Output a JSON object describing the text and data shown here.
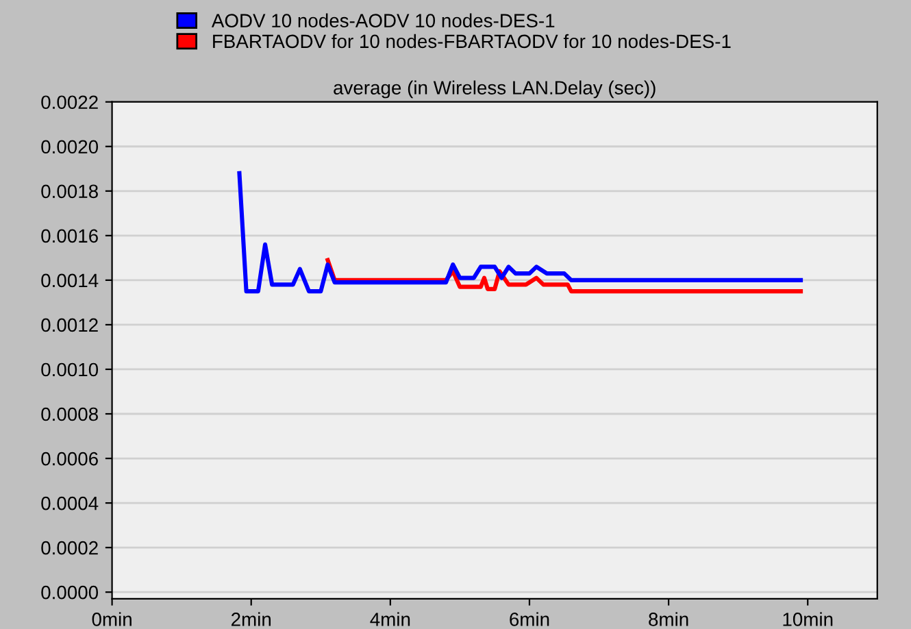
{
  "chart_data": {
    "type": "line",
    "title": "average (in Wireless LAN.Delay (sec))",
    "series": [
      {
        "name": "AODV 10 nodes-AODV 10 nodes-DES-1",
        "color": "#0000ff",
        "x": [
          1.83,
          1.93,
          2.1,
          2.2,
          2.3,
          2.6,
          2.7,
          2.83,
          3.0,
          3.1,
          3.2,
          4.8,
          4.9,
          5.0,
          5.2,
          5.3,
          5.5,
          5.6,
          5.7,
          5.8,
          6.0,
          6.1,
          6.25,
          6.5,
          6.6,
          9.9
        ],
        "values": [
          0.00188,
          0.00135,
          0.00135,
          0.00156,
          0.00138,
          0.00138,
          0.00145,
          0.00135,
          0.00135,
          0.00147,
          0.00139,
          0.00139,
          0.00147,
          0.00141,
          0.00141,
          0.00146,
          0.00146,
          0.00141,
          0.00146,
          0.00143,
          0.00143,
          0.00146,
          0.00143,
          0.00143,
          0.0014,
          0.0014
        ]
      },
      {
        "name": "FBARTAODV for 10 nodes-FBARTAODV for 10 nodes-DES-1",
        "color": "#ff0000",
        "x": [
          3.1,
          3.2,
          4.8,
          4.9,
          5.0,
          5.3,
          5.35,
          5.4,
          5.5,
          5.57,
          5.7,
          5.95,
          6.1,
          6.2,
          6.55,
          6.6,
          9.9
        ],
        "values": [
          0.00149,
          0.0014,
          0.0014,
          0.00144,
          0.00137,
          0.00137,
          0.00141,
          0.00136,
          0.00136,
          0.00144,
          0.00138,
          0.00138,
          0.00141,
          0.00138,
          0.00138,
          0.00135,
          0.00135
        ]
      }
    ],
    "xlim": [
      0,
      11
    ],
    "xticks": [
      {
        "value": 0,
        "label": "0min"
      },
      {
        "value": 2,
        "label": "2min"
      },
      {
        "value": 4,
        "label": "4min"
      },
      {
        "value": 6,
        "label": "6min"
      },
      {
        "value": 8,
        "label": "8min"
      },
      {
        "value": 10,
        "label": "10min"
      }
    ],
    "ylim": [
      -3e-05,
      0.0022
    ],
    "yticks": [
      {
        "value": 0,
        "label": "0.0000"
      },
      {
        "value": 0.0002,
        "label": "0.0002"
      },
      {
        "value": 0.0004,
        "label": "0.0004"
      },
      {
        "value": 0.0006,
        "label": "0.0006"
      },
      {
        "value": 0.0008,
        "label": "0.0008"
      },
      {
        "value": 0.001,
        "label": "0.0010"
      },
      {
        "value": 0.0012,
        "label": "0.0012"
      },
      {
        "value": 0.0014,
        "label": "0.0014"
      },
      {
        "value": 0.0016,
        "label": "0.0016"
      },
      {
        "value": 0.0018,
        "label": "0.0018"
      },
      {
        "value": 0.002,
        "label": "0.0020"
      },
      {
        "value": 0.0022,
        "label": "0.0022"
      }
    ],
    "grid": "y",
    "legend": "top left"
  }
}
